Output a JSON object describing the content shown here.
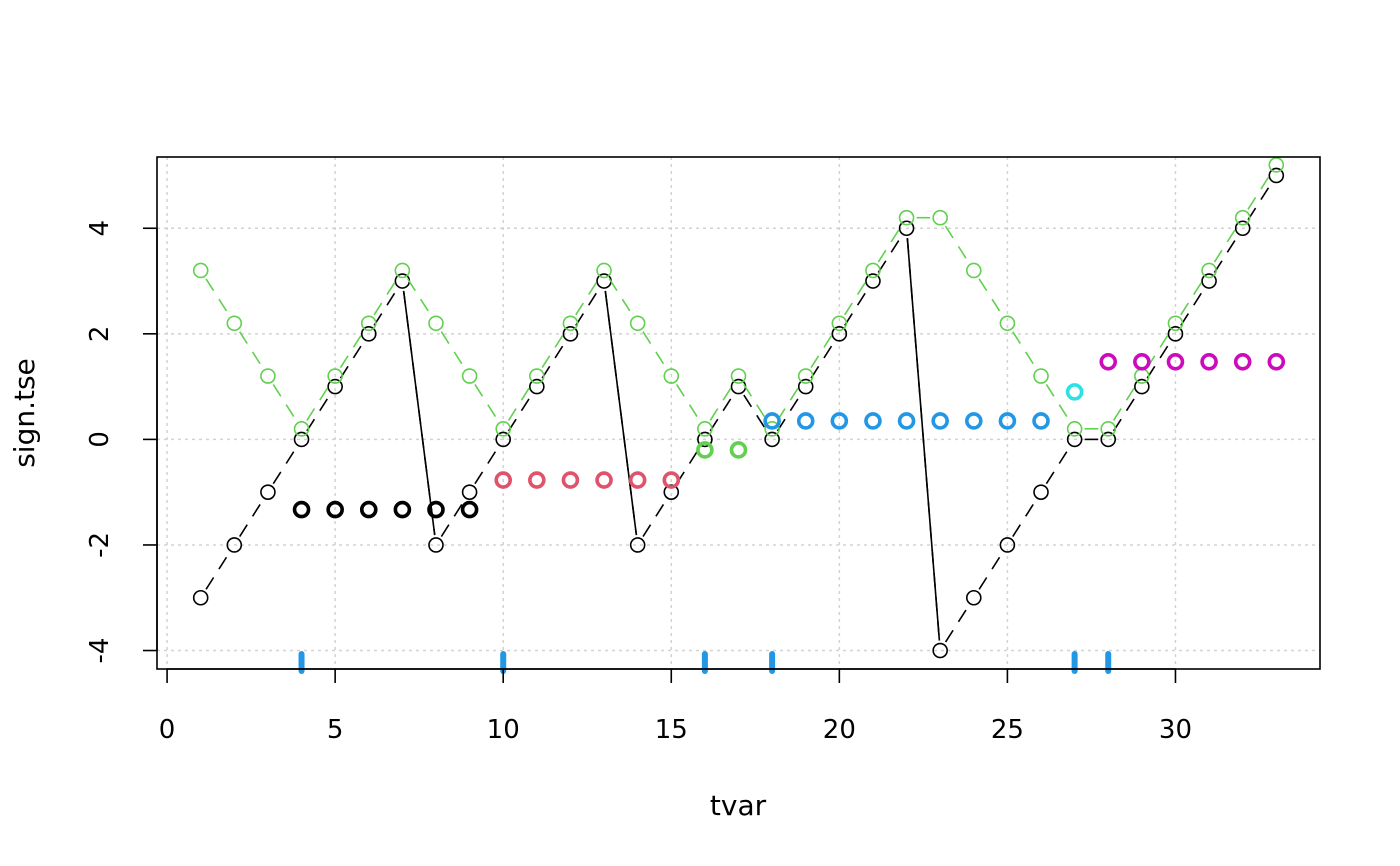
{
  "chart_data": {
    "type": "scatter",
    "title": "",
    "xlabel": "tvar",
    "ylabel": "sign.tse",
    "xlim": [
      -0.3,
      34.3
    ],
    "ylim": [
      -4.35,
      5.35
    ],
    "grid": true,
    "x_ticks": [
      0,
      5,
      10,
      15,
      20,
      25,
      30
    ],
    "x_tick_labels": [
      "0",
      "5",
      "10",
      "15",
      "20",
      "25",
      "30"
    ],
    "y_ticks": [
      -4,
      -2,
      0,
      2,
      4
    ],
    "y_tick_labels": [
      "-4",
      "-2",
      "0",
      "2",
      "4"
    ],
    "grid_x": [
      0,
      5,
      10,
      15,
      20,
      25,
      30
    ],
    "grid_y": [
      -4,
      -2,
      0,
      2,
      4
    ],
    "colors": {
      "black": "#000000",
      "green": "#61D04F",
      "red": "#DF536B",
      "blue": "#2297E6",
      "cyan": "#28E2E5",
      "magenta": "#CD0BBC",
      "grid": "#d3d3d3"
    },
    "series": [
      {
        "style": "dashed-line-points",
        "color": "#000000",
        "x": [
          1,
          2,
          3,
          4,
          5,
          6,
          7,
          8,
          9,
          10,
          11,
          12,
          13,
          14,
          15,
          16,
          17,
          18,
          19,
          20,
          21,
          22,
          23,
          24,
          25,
          26,
          27,
          28,
          29,
          30,
          31,
          32,
          33
        ],
        "y": [
          -3,
          -2,
          -1,
          0,
          1,
          2,
          3,
          -2,
          -1,
          0,
          1,
          2,
          3,
          -2,
          -1,
          0,
          1,
          0,
          1,
          2,
          3,
          4,
          -4,
          -3,
          -2,
          -1,
          0,
          0,
          1,
          2,
          3,
          4,
          5
        ]
      },
      {
        "style": "dashed-line-points",
        "color": "#61D04F",
        "x": [
          1,
          2,
          3,
          4,
          5,
          6,
          7,
          8,
          9,
          10,
          11,
          12,
          13,
          14,
          15,
          16,
          17,
          18,
          19,
          20,
          21,
          22,
          23,
          24,
          25,
          26,
          27,
          28,
          29,
          30,
          31,
          32,
          33
        ],
        "y": [
          3.2,
          2.2,
          1.2,
          0.2,
          1.2,
          2.2,
          3.2,
          2.2,
          1.2,
          0.2,
          1.2,
          2.2,
          3.2,
          2.2,
          1.2,
          0.2,
          1.2,
          0.2,
          1.2,
          2.2,
          3.2,
          4.2,
          4.2,
          3.2,
          2.2,
          1.2,
          0.2,
          0.2,
          1.2,
          2.2,
          3.2,
          4.2,
          5.2
        ]
      },
      {
        "style": "solid-drop-lines",
        "color": "#000000",
        "segments": [
          [
            [
              7,
              3
            ],
            [
              8,
              -2
            ]
          ],
          [
            [
              13,
              3
            ],
            [
              14,
              -2
            ]
          ],
          [
            [
              22,
              4
            ],
            [
              23,
              -4
            ]
          ]
        ]
      },
      {
        "style": "bold-points",
        "color": "#000000",
        "x": [
          4,
          5,
          6,
          7,
          8,
          9
        ],
        "y": [
          -1.33,
          -1.33,
          -1.33,
          -1.33,
          -1.33,
          -1.33
        ]
      },
      {
        "style": "bold-points",
        "color": "#DF536B",
        "x": [
          10,
          11,
          12,
          13,
          14,
          15
        ],
        "y": [
          -0.77,
          -0.77,
          -0.77,
          -0.77,
          -0.77,
          -0.77
        ]
      },
      {
        "style": "bold-points",
        "color": "#61D04F",
        "x": [
          16,
          17
        ],
        "y": [
          -0.2,
          -0.2
        ]
      },
      {
        "style": "bold-points",
        "color": "#2297E6",
        "x": [
          18,
          19,
          20,
          21,
          22,
          23,
          24,
          25,
          26
        ],
        "y": [
          0.35,
          0.35,
          0.35,
          0.35,
          0.35,
          0.35,
          0.35,
          0.35,
          0.35
        ]
      },
      {
        "style": "bold-points",
        "color": "#28E2E5",
        "x": [
          27
        ],
        "y": [
          0.9
        ]
      },
      {
        "style": "bold-points",
        "color": "#CD0BBC",
        "x": [
          28,
          29,
          30,
          31,
          32,
          33
        ],
        "y": [
          1.47,
          1.47,
          1.47,
          1.47,
          1.47,
          1.47
        ]
      }
    ],
    "rug": {
      "color": "#2297E6",
      "x": [
        4,
        10,
        16,
        18,
        27,
        28
      ]
    }
  }
}
